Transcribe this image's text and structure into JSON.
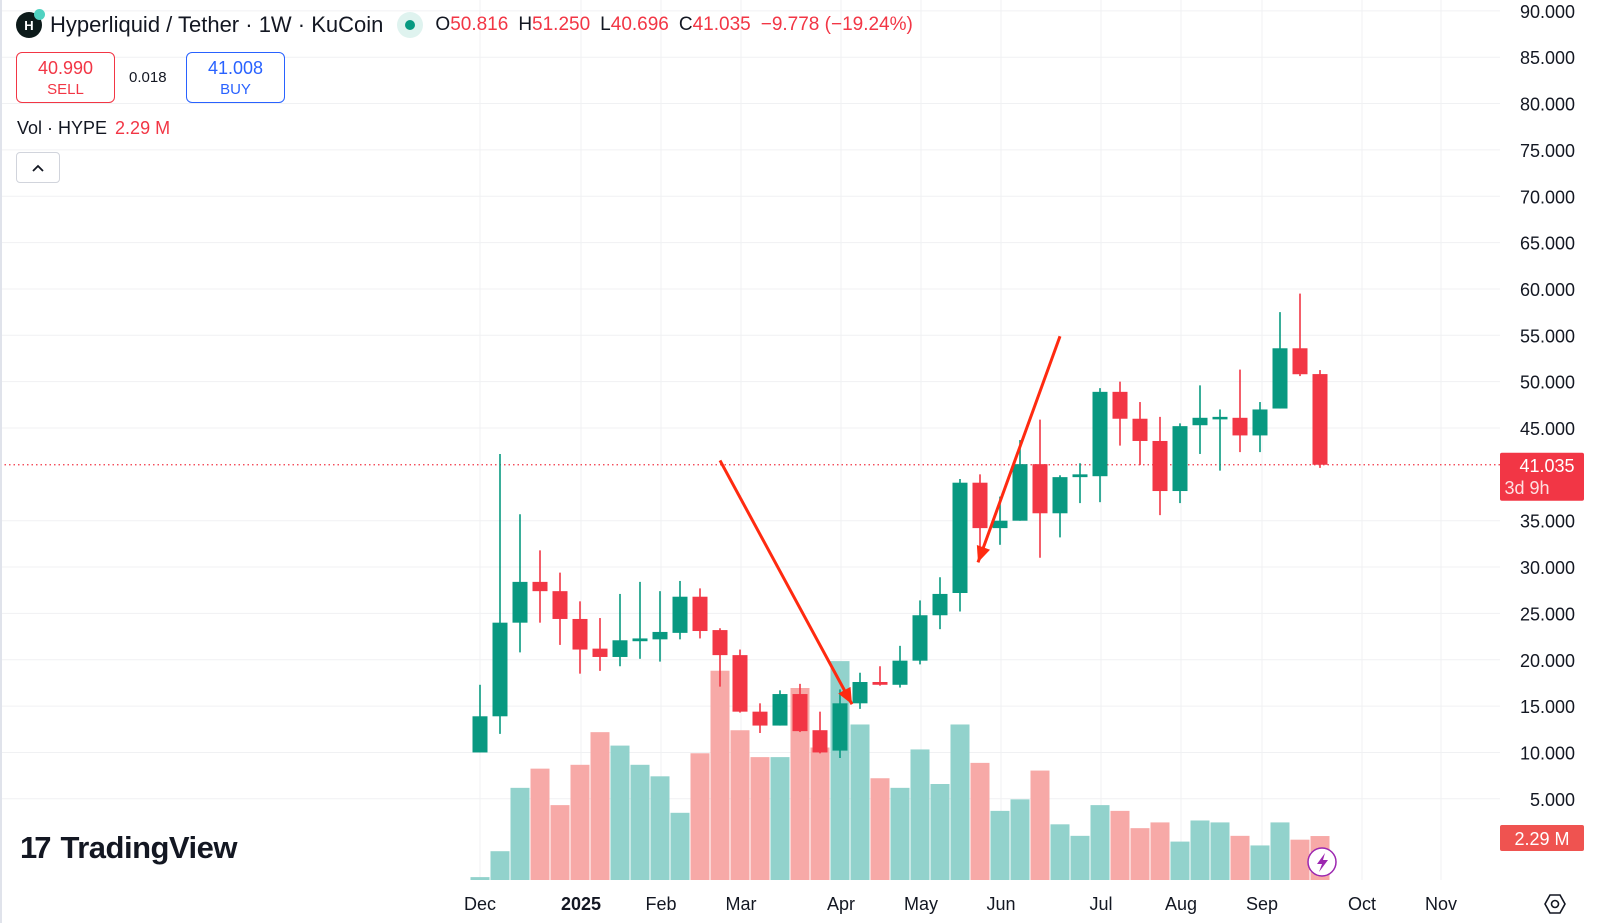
{
  "header": {
    "symbol_title": "Hyperliquid / Tether · 1W · KuCoin",
    "logo_letter": "H",
    "ohlc": {
      "o_label": "O",
      "o": "50.816",
      "h_label": "H",
      "h": "51.250",
      "l_label": "L",
      "l": "40.696",
      "c_label": "C",
      "c": "41.035",
      "change": "−9.778 (−19.24%)"
    }
  },
  "trade": {
    "sell_price": "40.990",
    "sell_label": "SELL",
    "spread": "0.018",
    "buy_price": "41.008",
    "buy_label": "BUY"
  },
  "volume_legend": {
    "label": "Vol · HYPE",
    "value": "2.29 M"
  },
  "collapse_icon": "chevron-up-icon",
  "branding": {
    "logo_text": "TradingView"
  },
  "colors": {
    "up": "#089981",
    "down": "#f23645",
    "up_vol": "#92d2cc",
    "down_vol": "#f7a9a7",
    "last_price": "#f23645",
    "annotation_arrow": "#ff2a10"
  },
  "price_axis": {
    "ticks": [
      "90.000",
      "85.000",
      "80.000",
      "75.000",
      "70.000",
      "65.000",
      "60.000",
      "55.000",
      "50.000",
      "45.000",
      "35.000",
      "30.000",
      "25.000",
      "20.000",
      "15.000",
      "10.000",
      "5.000"
    ],
    "last_price": "41.035",
    "countdown": "3d 9h",
    "volume_tag": "2.29 M"
  },
  "time_axis": {
    "labels": [
      "Dec",
      "2025",
      "Feb",
      "Mar",
      "Apr",
      "May",
      "Jun",
      "Jul",
      "Aug",
      "Sep",
      "Oct",
      "Nov"
    ],
    "bold": "2025"
  },
  "chart_data": {
    "type": "candlestick",
    "interval": "1W",
    "ylim": [
      0,
      90
    ],
    "grid": true,
    "last_price": 41.035,
    "candles": [
      {
        "o": 10.0,
        "h": 17.3,
        "l": 10.0,
        "c": 13.9,
        "v": 0.15
      },
      {
        "o": 13.9,
        "h": 42.2,
        "l": 12.0,
        "c": 24.0,
        "v": 1.5
      },
      {
        "o": 24.0,
        "h": 35.7,
        "l": 20.8,
        "c": 28.4,
        "v": 4.8
      },
      {
        "o": 28.4,
        "h": 31.8,
        "l": 24.0,
        "c": 27.4,
        "v": 5.8
      },
      {
        "o": 27.4,
        "h": 29.4,
        "l": 21.6,
        "c": 24.4,
        "v": 3.9
      },
      {
        "o": 24.4,
        "h": 26.3,
        "l": 18.5,
        "c": 21.1,
        "v": 6.0
      },
      {
        "o": 21.2,
        "h": 24.5,
        "l": 18.8,
        "c": 20.3,
        "v": 7.7
      },
      {
        "o": 20.3,
        "h": 27.1,
        "l": 19.3,
        "c": 22.1,
        "v": 7.0
      },
      {
        "o": 22.0,
        "h": 28.4,
        "l": 20.1,
        "c": 22.3,
        "v": 6.0
      },
      {
        "o": 22.2,
        "h": 27.4,
        "l": 19.8,
        "c": 23.0,
        "v": 5.4
      },
      {
        "o": 22.9,
        "h": 28.5,
        "l": 22.2,
        "c": 26.8,
        "v": 3.5
      },
      {
        "o": 26.8,
        "h": 27.7,
        "l": 22.3,
        "c": 23.1,
        "v": 6.6
      },
      {
        "o": 23.2,
        "h": 23.4,
        "l": 17.1,
        "c": 20.5,
        "v": 10.9
      },
      {
        "o": 20.5,
        "h": 21.1,
        "l": 14.3,
        "c": 14.4,
        "v": 7.8
      },
      {
        "o": 14.4,
        "h": 15.3,
        "l": 12.1,
        "c": 12.9,
        "v": 6.4
      },
      {
        "o": 12.9,
        "h": 16.7,
        "l": 12.9,
        "c": 16.3,
        "v": 6.4
      },
      {
        "o": 16.3,
        "h": 17.4,
        "l": 12.2,
        "c": 12.3,
        "v": 10.0
      },
      {
        "o": 12.4,
        "h": 14.4,
        "l": 9.9,
        "c": 10.0,
        "v": 6.9
      },
      {
        "o": 10.2,
        "h": 16.8,
        "l": 9.4,
        "c": 15.3,
        "v": 11.4
      },
      {
        "o": 15.3,
        "h": 18.6,
        "l": 14.7,
        "c": 17.6,
        "v": 8.1
      },
      {
        "o": 17.6,
        "h": 19.3,
        "l": 17.2,
        "c": 17.3,
        "v": 5.3
      },
      {
        "o": 17.3,
        "h": 21.5,
        "l": 17.0,
        "c": 19.9,
        "v": 4.8
      },
      {
        "o": 19.9,
        "h": 26.4,
        "l": 19.5,
        "c": 24.8,
        "v": 6.8
      },
      {
        "o": 24.8,
        "h": 28.9,
        "l": 23.3,
        "c": 27.1,
        "v": 5.0
      },
      {
        "o": 27.2,
        "h": 39.5,
        "l": 25.2,
        "c": 39.1,
        "v": 8.1
      },
      {
        "o": 39.1,
        "h": 40.0,
        "l": 31.1,
        "c": 34.2,
        "v": 6.1
      },
      {
        "o": 34.2,
        "h": 37.6,
        "l": 32.4,
        "c": 35.0,
        "v": 3.6
      },
      {
        "o": 35.0,
        "h": 43.7,
        "l": 35.0,
        "c": 41.1,
        "v": 4.2
      },
      {
        "o": 41.1,
        "h": 45.9,
        "l": 31.0,
        "c": 35.8,
        "v": 5.7
      },
      {
        "o": 35.8,
        "h": 39.9,
        "l": 33.2,
        "c": 39.7,
        "v": 2.9
      },
      {
        "o": 39.7,
        "h": 41.2,
        "l": 36.9,
        "c": 40.0,
        "v": 2.3
      },
      {
        "o": 39.8,
        "h": 49.3,
        "l": 37.0,
        "c": 48.9,
        "v": 3.9
      },
      {
        "o": 48.9,
        "h": 50.0,
        "l": 43.1,
        "c": 46.0,
        "v": 3.6
      },
      {
        "o": 46.0,
        "h": 47.8,
        "l": 41.0,
        "c": 43.6,
        "v": 2.7
      },
      {
        "o": 43.6,
        "h": 46.2,
        "l": 35.6,
        "c": 38.2,
        "v": 3.0
      },
      {
        "o": 38.2,
        "h": 45.5,
        "l": 36.9,
        "c": 45.2,
        "v": 2.0
      },
      {
        "o": 45.3,
        "h": 49.6,
        "l": 42.2,
        "c": 46.1,
        "v": 3.1
      },
      {
        "o": 46.0,
        "h": 47.0,
        "l": 40.4,
        "c": 46.2,
        "v": 3.0
      },
      {
        "o": 46.1,
        "h": 51.3,
        "l": 42.4,
        "c": 44.2,
        "v": 2.3
      },
      {
        "o": 44.2,
        "h": 47.8,
        "l": 42.4,
        "c": 47.0,
        "v": 1.8
      },
      {
        "o": 47.1,
        "h": 57.5,
        "l": 47.1,
        "c": 53.6,
        "v": 3.0
      },
      {
        "o": 53.6,
        "h": 59.5,
        "l": 50.6,
        "c": 50.8,
        "v": 2.1
      },
      {
        "o": 50.816,
        "h": 51.25,
        "l": 40.696,
        "c": 41.035,
        "v": 2.29
      }
    ],
    "annotations": [
      {
        "type": "arrow",
        "from": {
          "candle": 12,
          "price": 41.5
        },
        "to": {
          "candle": 18.6,
          "price": 15.2
        }
      },
      {
        "type": "arrow",
        "from": {
          "candle": 29,
          "price": 54.9
        },
        "to": {
          "candle": 24.9,
          "price": 30.5
        }
      }
    ]
  }
}
